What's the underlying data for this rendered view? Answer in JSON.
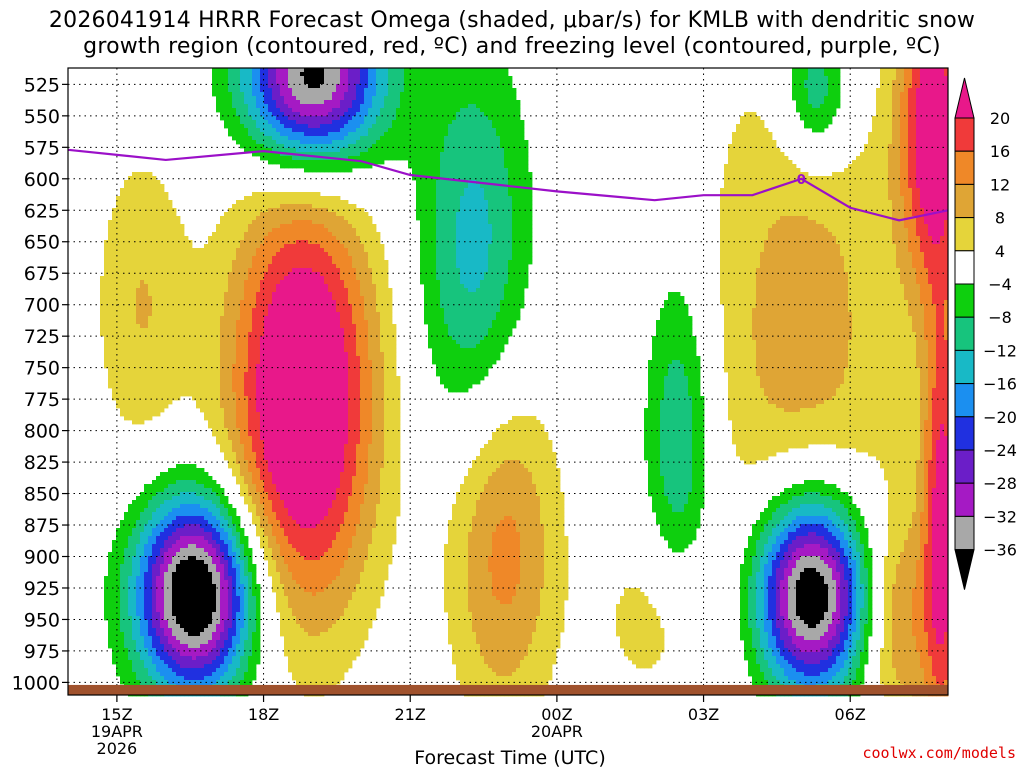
{
  "title": {
    "line1": "2026041914 HRRR Forecast Omega (shaded, μbar/s) for KMLB with dendritic snow",
    "line2": "growth region (contoured, red, ºC) and freezing level (contoured, purple, ºC)"
  },
  "credit": "coolwx.com/models",
  "chart_data": {
    "type": "heatmap",
    "title": "2026041914 HRRR Forecast Omega (shaded, μbar/s) for KMLB with dendritic snow growth region (contoured, red, ºC) and freezing level (contoured, purple, ºC)",
    "xlabel": "Forecast Time (UTC)",
    "ylabel": "",
    "x_ticks": [
      {
        "label": "15Z",
        "sub1": "19APR",
        "sub2": "2026",
        "hour": 1
      },
      {
        "label": "18Z",
        "sub1": "",
        "sub2": "",
        "hour": 4
      },
      {
        "label": "21Z",
        "sub1": "",
        "sub2": "",
        "hour": 7
      },
      {
        "label": "00Z",
        "sub1": "20APR",
        "sub2": "",
        "hour": 10
      },
      {
        "label": "03Z",
        "sub1": "",
        "sub2": "",
        "hour": 13
      },
      {
        "label": "06Z",
        "sub1": "",
        "sub2": "",
        "hour": 16
      }
    ],
    "xlim": [
      0.0,
      18.0
    ],
    "y_ticks": [
      525,
      550,
      575,
      600,
      625,
      650,
      675,
      700,
      725,
      750,
      775,
      800,
      825,
      850,
      875,
      900,
      925,
      950,
      975,
      1000
    ],
    "ylim": [
      1010,
      512
    ],
    "grid": true,
    "colorbar": {
      "labels": [
        "20",
        "16",
        "12",
        "8",
        "4",
        "−4",
        "−8",
        "−12",
        "−16",
        "−20",
        "−24",
        "−28",
        "−32",
        "−36"
      ],
      "bins": [
        {
          "min": 20,
          "max": 24,
          "color": "#e8188a"
        },
        {
          "min": 16,
          "max": 20,
          "color": "#f03a3a"
        },
        {
          "min": 12,
          "max": 16,
          "color": "#ef8828"
        },
        {
          "min": 8,
          "max": 12,
          "color": "#dfa535"
        },
        {
          "min": 4,
          "max": 8,
          "color": "#e5d43a"
        },
        {
          "min": -4,
          "max": 4,
          "color": "#ffffff"
        },
        {
          "min": -8,
          "max": -4,
          "color": "#0ecf0e"
        },
        {
          "min": -12,
          "max": -8,
          "color": "#17c47d"
        },
        {
          "min": -16,
          "max": -12,
          "color": "#18b9c6"
        },
        {
          "min": -20,
          "max": -16,
          "color": "#1b8ff0"
        },
        {
          "min": -24,
          "max": -20,
          "color": "#2030e0"
        },
        {
          "min": -28,
          "max": -24,
          "color": "#6b1ec8"
        },
        {
          "min": -32,
          "max": -28,
          "color": "#a51ac4"
        },
        {
          "min": -36,
          "max": -32,
          "color": "#a8a8a8"
        },
        {
          "min": -40,
          "max": -36,
          "color": "#000000"
        }
      ]
    },
    "omega_centers": [
      {
        "t": 5.0,
        "p": 520,
        "amp": -40,
        "st": 1.0,
        "sp": 50
      },
      {
        "t": 2.6,
        "p": 930,
        "amp": -44,
        "st": 0.85,
        "sp": 55
      },
      {
        "t": 15.2,
        "p": 930,
        "amp": -44,
        "st": 0.8,
        "sp": 55
      },
      {
        "t": 4.8,
        "p": 775,
        "amp": 30,
        "st": 1.05,
        "sp": 120
      },
      {
        "t": 8.3,
        "p": 660,
        "amp": -14,
        "st": 0.8,
        "sp": 110
      },
      {
        "t": 12.5,
        "p": 810,
        "amp": -13,
        "st": 0.5,
        "sp": 100
      },
      {
        "t": 15.3,
        "p": 530,
        "amp": -14,
        "st": 0.5,
        "sp": 40
      },
      {
        "t": 8.9,
        "p": 890,
        "amp": 14,
        "st": 0.8,
        "sp": 100
      },
      {
        "t": 17.7,
        "p": 560,
        "amp": 24,
        "st": 0.5,
        "sp": 90
      },
      {
        "t": 17.9,
        "p": 880,
        "amp": 22,
        "st": 0.3,
        "sp": 130
      },
      {
        "t": 15.0,
        "p": 720,
        "amp": 10,
        "st": 1.5,
        "sp": 160
      },
      {
        "t": 1.5,
        "p": 700,
        "amp": 8,
        "st": 0.7,
        "sp": 90
      },
      {
        "t": 12.2,
        "p": 950,
        "amp": 7,
        "st": 0.9,
        "sp": 50
      },
      {
        "t": 17.0,
        "p": 950,
        "amp": 12,
        "st": 0.5,
        "sp": 60
      }
    ],
    "freezing_level": {
      "color": "#9b10c8",
      "label": "0",
      "points": [
        {
          "t": 0.0,
          "p": 577
        },
        {
          "t": 2.0,
          "p": 585
        },
        {
          "t": 4.0,
          "p": 578
        },
        {
          "t": 6.0,
          "p": 586
        },
        {
          "t": 7.0,
          "p": 597
        },
        {
          "t": 10.0,
          "p": 610
        },
        {
          "t": 12.0,
          "p": 617
        },
        {
          "t": 13.0,
          "p": 613
        },
        {
          "t": 14.0,
          "p": 613
        },
        {
          "t": 15.0,
          "p": 600
        },
        {
          "t": 16.0,
          "p": 623
        },
        {
          "t": 17.0,
          "p": 633
        },
        {
          "t": 18.0,
          "p": 625
        }
      ]
    },
    "ground": {
      "color": "#a0522d"
    }
  }
}
